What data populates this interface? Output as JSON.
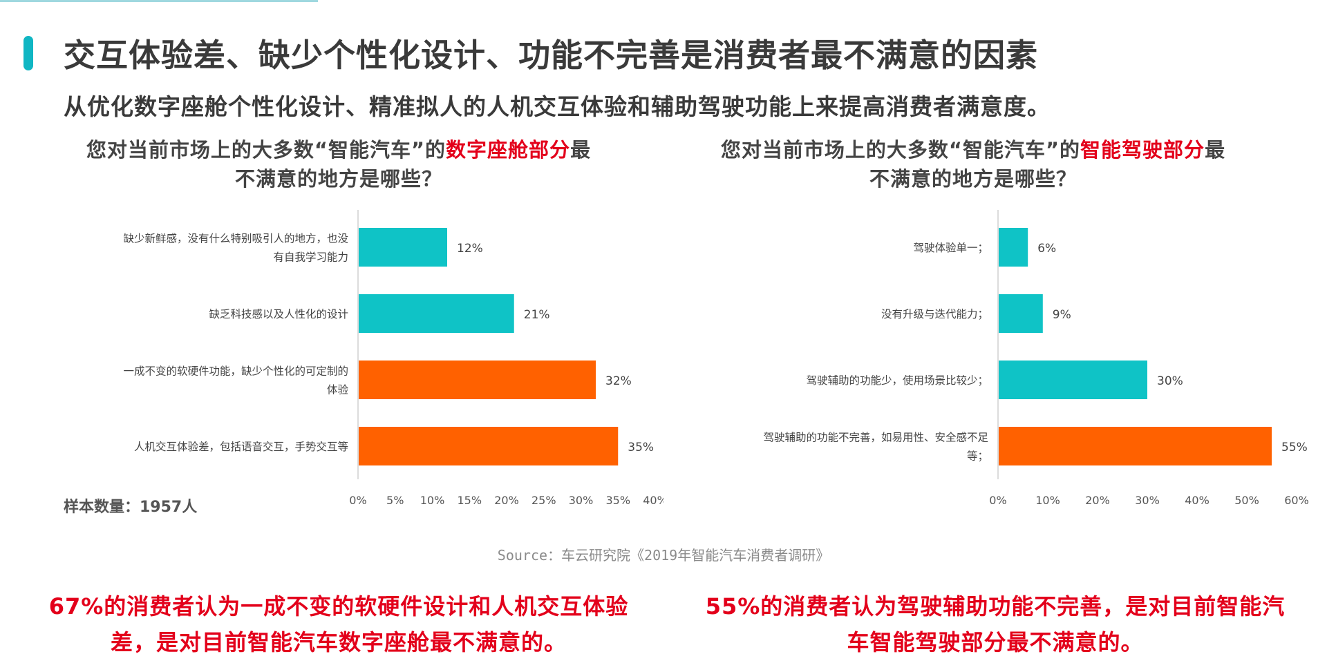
{
  "header": {
    "title": "交互体验差、缺少个性化设计、功能不完善是消费者最不满意的因素",
    "subtitle": "从优化数字座舱个性化设计、精准拟人的人机交互体验和辅助驾驶功能上来提高消费者满意度。"
  },
  "left_heading": {
    "prefix": "您对当前市场上的大多数“智能汽车”的",
    "highlight": "数字座舱部分",
    "suffix": "最",
    "line2": "不满意的地方是哪些？"
  },
  "right_heading": {
    "prefix": "您对当前市场上的大多数“智能汽车”的",
    "highlight": "智能驾驶部分",
    "suffix": "最",
    "line2": "不满意的地方是哪些？"
  },
  "sample": "样本数量：1957人",
  "source": "Source：车云研究院《2019年智能汽车消费者调研》",
  "conclusion_left": {
    "line1": "67%的消费者认为一成不变的软硬件设计和人机交互体验",
    "line2": "差，是对目前智能汽车数字座舱最不满意的。"
  },
  "conclusion_right": {
    "line1": "55%的消费者认为驾驶辅助功能不完善，是对目前智能汽",
    "line2": "车智能驾驶部分最不满意的。"
  },
  "colors": {
    "teal": "#0fc3c6",
    "orange": "#ff6100",
    "accent_red": "#e3001b",
    "title_bar": "#10b6c3"
  },
  "chart_data": [
    {
      "type": "bar",
      "orientation": "horizontal",
      "categories": [
        [
          "缺少新鲜感，没有什么特别吸引人的地方，也没",
          "有自我学习能力"
        ],
        [
          "缺乏科技感以及人性化的设计"
        ],
        [
          "一成不变的软硬件功能，缺少个性化的可定制的",
          "体验"
        ],
        [
          "人机交互体验差，包括语音交互，手势交互等"
        ]
      ],
      "values": [
        12,
        21,
        32,
        35
      ],
      "value_labels": [
        "12%",
        "21%",
        "32%",
        "35%"
      ],
      "highlight": [
        false,
        false,
        true,
        true
      ],
      "xlim": [
        0,
        40
      ],
      "ticks": [
        0,
        5,
        10,
        15,
        20,
        25,
        30,
        35,
        40
      ],
      "tick_labels": [
        "0%",
        "5%",
        "10%",
        "15%",
        "20%",
        "25%",
        "30%",
        "35%",
        "40%"
      ],
      "grid": false
    },
    {
      "type": "bar",
      "orientation": "horizontal",
      "categories": [
        [
          "驾驶体验单一；"
        ],
        [
          "没有升级与迭代能力；"
        ],
        [
          "驾驶辅助的功能少，使用场景比较少；"
        ],
        [
          "驾驶辅助的功能不完善，如易用性、安全感不足",
          "等；"
        ]
      ],
      "values": [
        6,
        9,
        30,
        55
      ],
      "value_labels": [
        "6%",
        "9%",
        "30%",
        "55%"
      ],
      "highlight": [
        false,
        false,
        false,
        true
      ],
      "xlim": [
        0,
        60
      ],
      "ticks": [
        0,
        10,
        20,
        30,
        40,
        50,
        60
      ],
      "tick_labels": [
        "0%",
        "10%",
        "20%",
        "30%",
        "40%",
        "50%",
        "60%"
      ],
      "grid": false
    }
  ]
}
